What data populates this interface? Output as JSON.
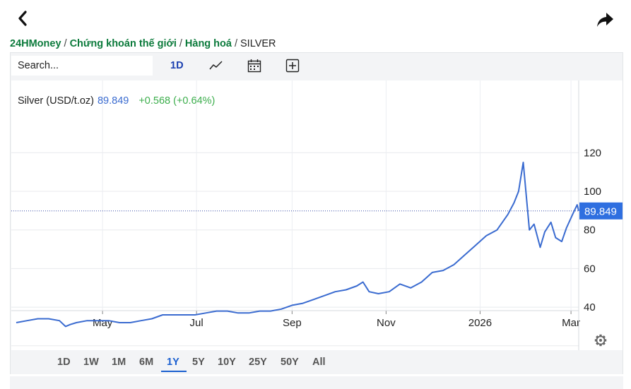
{
  "nav": {
    "back_icon": "chevron-left-icon",
    "share_icon": "share-arrow-icon"
  },
  "breadcrumb": {
    "items": [
      "24HMoney",
      "Chứng khoán thế giới",
      "Hàng hoá"
    ],
    "separator": "/",
    "current": "SILVER"
  },
  "toolbar": {
    "search_placeholder": "Search...",
    "interval": "1D",
    "icons": [
      "line-chart-icon",
      "calendar-icon",
      "add-indicator-icon"
    ]
  },
  "legend": {
    "symbol": "Silver (USD/t.oz)",
    "price": "89.849",
    "change": "+0.568 (+0.64%)"
  },
  "price_label": "89.849",
  "range_buttons": [
    "1D",
    "1W",
    "1M",
    "6M",
    "1Y",
    "5Y",
    "10Y",
    "25Y",
    "50Y",
    "All"
  ],
  "active_range": "1Y",
  "colors": {
    "line": "#3a6bd0",
    "price_tag": "#2f6fe0",
    "breadcrumb_link": "#0b7a3b",
    "change_up": "#3cae4c",
    "active_range": "#1a5fd0"
  },
  "chart_data": {
    "type": "line",
    "title": "Silver (USD/t.oz)",
    "xlabel": "",
    "ylabel": "",
    "x_tick_labels": [
      "May",
      "Jul",
      "Sep",
      "Nov",
      "2026",
      "Mar"
    ],
    "y_tick_labels": [
      "40",
      "60",
      "80",
      "100",
      "120"
    ],
    "ylim": [
      20,
      140
    ],
    "grid": true,
    "last_value": 89.849,
    "series": [
      {
        "name": "Silver (USD/t.oz)",
        "x": [
          "2025-03-06",
          "2025-03-13",
          "2025-03-20",
          "2025-03-27",
          "2025-04-03",
          "2025-04-07",
          "2025-04-10",
          "2025-04-14",
          "2025-04-21",
          "2025-04-28",
          "2025-05-05",
          "2025-05-12",
          "2025-05-19",
          "2025-05-26",
          "2025-06-02",
          "2025-06-09",
          "2025-06-16",
          "2025-06-23",
          "2025-06-30",
          "2025-07-07",
          "2025-07-14",
          "2025-07-21",
          "2025-07-28",
          "2025-08-04",
          "2025-08-11",
          "2025-08-18",
          "2025-08-25",
          "2025-09-01",
          "2025-09-08",
          "2025-09-15",
          "2025-09-22",
          "2025-09-29",
          "2025-10-06",
          "2025-10-13",
          "2025-10-17",
          "2025-10-21",
          "2025-10-27",
          "2025-11-03",
          "2025-11-10",
          "2025-11-17",
          "2025-11-24",
          "2025-12-01",
          "2025-12-08",
          "2025-12-15",
          "2025-12-22",
          "2025-12-29",
          "2026-01-05",
          "2026-01-12",
          "2026-01-19",
          "2026-01-23",
          "2026-01-26",
          "2026-01-29",
          "2026-02-02",
          "2026-02-05",
          "2026-02-09",
          "2026-02-12",
          "2026-02-16",
          "2026-02-19",
          "2026-02-23",
          "2026-02-26",
          "2026-03-02",
          "2026-03-05",
          "2026-03-06"
        ],
        "values": [
          32,
          33,
          34,
          34,
          33,
          30,
          31,
          32,
          33,
          33,
          33,
          32,
          32,
          33,
          34,
          36,
          36,
          36,
          36,
          37,
          38,
          38,
          37,
          37,
          38,
          38,
          39,
          41,
          42,
          44,
          46,
          48,
          49,
          51,
          53,
          48,
          47,
          48,
          52,
          50,
          53,
          58,
          59,
          62,
          67,
          72,
          77,
          80,
          88,
          94,
          100,
          115,
          80,
          83,
          71,
          79,
          84,
          76,
          74,
          81,
          88,
          93,
          89.849
        ]
      }
    ]
  }
}
